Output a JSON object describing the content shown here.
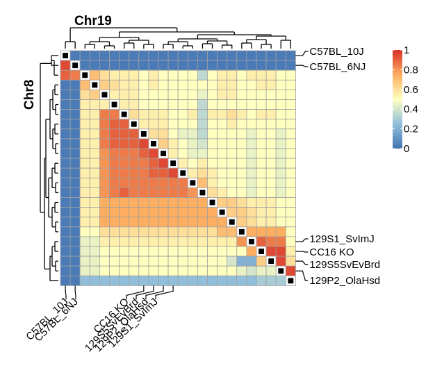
{
  "chart_data": {
    "type": "heatmap",
    "title_top": "Chr19",
    "title_left": "Chr8",
    "n": 24,
    "colorbar": {
      "min": 0,
      "max": 1,
      "ticks": [
        "0",
        "0.2",
        "0.4",
        "0.6",
        "0.8",
        "1"
      ],
      "colors": [
        "#4575b4",
        "#91bfdb",
        "#ffffbf",
        "#fdae61",
        "#d73027"
      ]
    },
    "diagonal_pattern": [
      "#000000",
      "#ffffff"
    ],
    "row_labels_right": [
      {
        "text": "C57BL_10J",
        "row": 0
      },
      {
        "text": "C57BL_6NJ",
        "row": 1
      },
      {
        "text": "129S1_SvImJ",
        "row": 19
      },
      {
        "text": "CC16 KO",
        "row": 20
      },
      {
        "text": "129S5SvEvBrd",
        "row": 21
      },
      {
        "text": "129P2_OlaHsd",
        "row": 22
      }
    ],
    "col_labels_bottom": [
      {
        "text": "C57BL_10J",
        "col": 0
      },
      {
        "text": "C57BL_6NJ",
        "col": 1
      },
      {
        "text": "CC16 KO",
        "col": 8
      },
      {
        "text": "129S5SvEvBrd",
        "col": 9
      },
      {
        "text": "129P2_OlaHsd",
        "col": 10
      },
      {
        "text": "129S1_SvImJ",
        "col": 11
      }
    ],
    "values": [
      [
        -1,
        0.02,
        0.02,
        0.02,
        0.02,
        0.02,
        0.02,
        0.02,
        0.02,
        0.02,
        0.02,
        0.02,
        0.02,
        0.02,
        0.02,
        0.02,
        0.02,
        0.02,
        0.02,
        0.02,
        0.02,
        0.02,
        0.02,
        0.02
      ],
      [
        0.95,
        -1,
        0.02,
        0.02,
        0.02,
        0.02,
        0.02,
        0.02,
        0.02,
        0.02,
        0.02,
        0.02,
        0.02,
        0.02,
        0.02,
        0.02,
        0.02,
        0.02,
        0.02,
        0.02,
        0.02,
        0.02,
        0.02,
        0.02
      ],
      [
        0.9,
        0.85,
        -1,
        0.7,
        0.6,
        0.55,
        0.55,
        0.55,
        0.5,
        0.55,
        0.5,
        0.5,
        0.5,
        0.5,
        0.35,
        0.5,
        0.55,
        0.55,
        0.5,
        0.55,
        0.55,
        0.55,
        0.5,
        0.5
      ],
      [
        0.02,
        0.02,
        0.7,
        -1,
        0.65,
        0.6,
        0.55,
        0.55,
        0.5,
        0.55,
        0.5,
        0.5,
        0.5,
        0.5,
        0.5,
        0.5,
        0.55,
        0.55,
        0.5,
        0.5,
        0.55,
        0.55,
        0.5,
        0.5
      ],
      [
        0.02,
        0.02,
        0.6,
        0.65,
        -1,
        0.55,
        0.55,
        0.55,
        0.5,
        0.5,
        0.5,
        0.5,
        0.5,
        0.5,
        0.45,
        0.5,
        0.55,
        0.55,
        0.5,
        0.5,
        0.5,
        0.5,
        0.5,
        0.5
      ],
      [
        0.02,
        0.02,
        0.55,
        0.55,
        0.55,
        -1,
        0.55,
        0.55,
        0.5,
        0.5,
        0.5,
        0.5,
        0.5,
        0.5,
        0.35,
        0.5,
        0.5,
        0.5,
        0.5,
        0.5,
        0.5,
        0.5,
        0.5,
        0.5
      ],
      [
        0.02,
        0.02,
        0.55,
        0.55,
        0.85,
        0.85,
        -1,
        0.6,
        0.55,
        0.55,
        0.55,
        0.5,
        0.5,
        0.55,
        0.35,
        0.55,
        0.55,
        0.6,
        0.55,
        0.5,
        0.55,
        0.55,
        0.5,
        0.5
      ],
      [
        0.02,
        0.02,
        0.55,
        0.55,
        0.85,
        0.9,
        0.9,
        -1,
        0.55,
        0.55,
        0.55,
        0.5,
        0.5,
        0.5,
        0.35,
        0.5,
        0.5,
        0.55,
        0.5,
        0.5,
        0.5,
        0.5,
        0.5,
        0.5
      ],
      [
        0.02,
        0.02,
        0.55,
        0.55,
        0.85,
        0.9,
        0.9,
        0.9,
        -1,
        0.6,
        0.6,
        0.5,
        0.45,
        0.45,
        0.35,
        0.5,
        0.5,
        0.5,
        0.5,
        0.45,
        0.5,
        0.5,
        0.45,
        0.5
      ],
      [
        0.02,
        0.02,
        0.55,
        0.55,
        0.85,
        0.9,
        0.9,
        0.9,
        0.95,
        -1,
        0.65,
        0.55,
        0.5,
        0.45,
        0.4,
        0.5,
        0.5,
        0.5,
        0.5,
        0.45,
        0.5,
        0.5,
        0.45,
        0.5
      ],
      [
        0.02,
        0.02,
        0.55,
        0.55,
        0.8,
        0.85,
        0.85,
        0.85,
        0.9,
        0.95,
        -1,
        0.55,
        0.5,
        0.45,
        0.45,
        0.5,
        0.5,
        0.5,
        0.5,
        0.45,
        0.5,
        0.5,
        0.45,
        0.5
      ],
      [
        0.02,
        0.02,
        0.55,
        0.55,
        0.8,
        0.85,
        0.85,
        0.85,
        0.85,
        0.9,
        0.95,
        -1,
        0.55,
        0.5,
        0.55,
        0.5,
        0.5,
        0.5,
        0.5,
        0.45,
        0.5,
        0.5,
        0.45,
        0.5
      ],
      [
        0.02,
        0.02,
        0.55,
        0.55,
        0.8,
        0.85,
        0.85,
        0.85,
        0.85,
        0.9,
        0.9,
        0.95,
        -1,
        0.55,
        0.6,
        0.55,
        0.5,
        0.5,
        0.5,
        0.45,
        0.5,
        0.5,
        0.45,
        0.5
      ],
      [
        0.02,
        0.02,
        0.55,
        0.55,
        0.8,
        0.85,
        0.85,
        0.85,
        0.85,
        0.85,
        0.85,
        0.85,
        0.85,
        -1,
        0.7,
        0.55,
        0.5,
        0.5,
        0.5,
        0.45,
        0.5,
        0.5,
        0.45,
        0.5
      ],
      [
        0.02,
        0.02,
        0.55,
        0.55,
        0.8,
        0.85,
        0.9,
        0.85,
        0.85,
        0.85,
        0.85,
        0.85,
        0.85,
        0.8,
        -1,
        0.6,
        0.55,
        0.5,
        0.5,
        0.45,
        0.5,
        0.5,
        0.45,
        0.5
      ],
      [
        0.02,
        0.02,
        0.55,
        0.55,
        0.75,
        0.75,
        0.75,
        0.75,
        0.75,
        0.75,
        0.75,
        0.75,
        0.75,
        0.75,
        0.75,
        -1,
        0.65,
        0.65,
        0.6,
        0.55,
        0.55,
        0.55,
        0.5,
        0.5
      ],
      [
        0.02,
        0.02,
        0.55,
        0.55,
        0.75,
        0.75,
        0.75,
        0.75,
        0.75,
        0.75,
        0.75,
        0.75,
        0.75,
        0.75,
        0.75,
        0.75,
        -1,
        0.65,
        0.65,
        0.6,
        0.55,
        0.55,
        0.5,
        0.5
      ],
      [
        0.02,
        0.02,
        0.55,
        0.55,
        0.75,
        0.75,
        0.75,
        0.75,
        0.75,
        0.75,
        0.75,
        0.75,
        0.75,
        0.75,
        0.75,
        0.75,
        0.75,
        -1,
        0.65,
        0.6,
        0.55,
        0.55,
        0.5,
        0.5
      ],
      [
        0.02,
        0.02,
        0.5,
        0.5,
        0.6,
        0.6,
        0.6,
        0.6,
        0.6,
        0.6,
        0.6,
        0.6,
        0.6,
        0.6,
        0.6,
        0.6,
        0.7,
        0.7,
        -1,
        0.75,
        0.75,
        0.75,
        0.75,
        0.5
      ],
      [
        0.02,
        0.02,
        0.45,
        0.45,
        0.55,
        0.55,
        0.55,
        0.55,
        0.55,
        0.55,
        0.55,
        0.55,
        0.55,
        0.55,
        0.55,
        0.55,
        0.55,
        0.55,
        0.8,
        -1,
        0.9,
        0.85,
        0.85,
        0.5
      ],
      [
        0.02,
        0.02,
        0.45,
        0.45,
        0.5,
        0.5,
        0.5,
        0.5,
        0.5,
        0.5,
        0.5,
        0.5,
        0.5,
        0.5,
        0.5,
        0.5,
        0.5,
        0.5,
        0.5,
        0.75,
        -1,
        0.95,
        0.95,
        0.55
      ],
      [
        0.02,
        0.02,
        0.45,
        0.45,
        0.5,
        0.5,
        0.5,
        0.5,
        0.5,
        0.5,
        0.5,
        0.5,
        0.5,
        0.5,
        0.5,
        0.5,
        0.5,
        0.4,
        0.2,
        0.2,
        0.65,
        -1,
        0.95,
        0.6
      ],
      [
        0.02,
        0.02,
        0.45,
        0.45,
        0.5,
        0.5,
        0.5,
        0.5,
        0.5,
        0.5,
        0.5,
        0.5,
        0.5,
        0.5,
        0.5,
        0.5,
        0.5,
        0.5,
        0.45,
        0.4,
        0.45,
        0.45,
        -1,
        0.95
      ],
      [
        0.02,
        0.02,
        0.25,
        0.25,
        0.25,
        0.25,
        0.25,
        0.25,
        0.25,
        0.25,
        0.25,
        0.25,
        0.25,
        0.25,
        0.25,
        0.25,
        0.25,
        0.25,
        0.25,
        0.25,
        0.3,
        0.3,
        0.3,
        -1
      ]
    ]
  }
}
